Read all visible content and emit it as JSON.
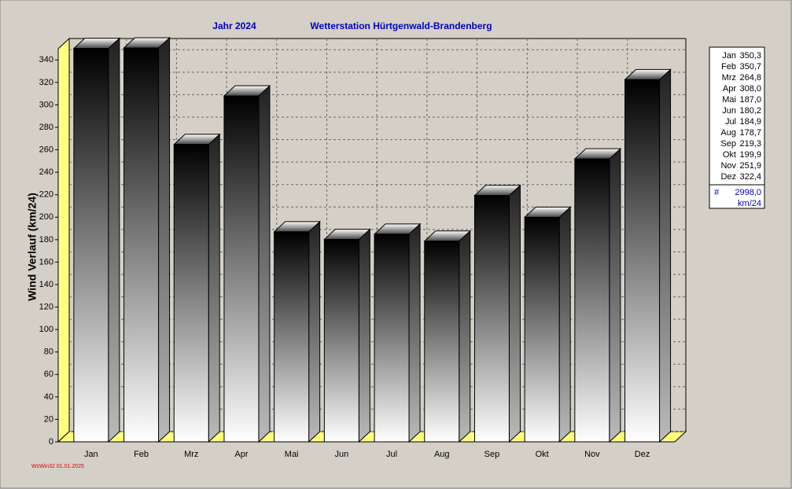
{
  "chart_data": {
    "type": "bar",
    "title": "Jahr  2024",
    "subtitle": "Wetterstation Hürtgenwald-Brandenberg",
    "y_label": "Wind Verlauf  (km/24)",
    "categories": [
      "Jan",
      "Feb",
      "Mrz",
      "Apr",
      "Mai",
      "Jun",
      "Jul",
      "Aug",
      "Sep",
      "Okt",
      "Nov",
      "Dez"
    ],
    "values": [
      350.3,
      350.7,
      264.8,
      308.0,
      187.0,
      180.2,
      184.9,
      178.7,
      219.3,
      199.9,
      251.9,
      322.4
    ],
    "value_labels": [
      "350,3",
      "350,7",
      "264,8",
      "308,0",
      "187,0",
      "180,2",
      "184,9",
      "178,7",
      "219,3",
      "199,9",
      "251,9",
      "322,4"
    ],
    "total_symbol": "#",
    "total": 2998.0,
    "total_label": "2998,0",
    "unit": "km/24",
    "ylim": [
      0,
      350
    ],
    "yticks": [
      0,
      20,
      40,
      60,
      80,
      100,
      120,
      140,
      160,
      180,
      200,
      220,
      240,
      260,
      280,
      300,
      320,
      340
    ],
    "grid": true,
    "footer": "WsWin32  01.01.2025"
  }
}
